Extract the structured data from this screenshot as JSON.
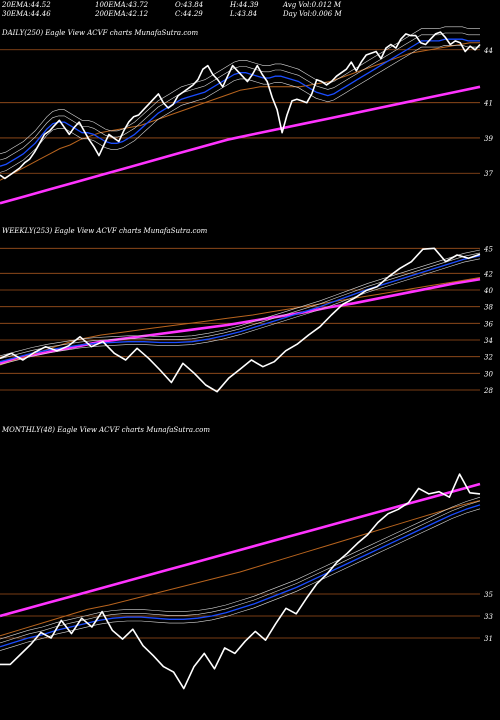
{
  "header": {
    "row1": [
      {
        "label": "20EMA:",
        "value": "44.52"
      },
      {
        "label": "100EMA:",
        "value": "43.72"
      },
      {
        "label": "O:",
        "value": "43.84"
      },
      {
        "label": "H:",
        "value": "44.39"
      },
      {
        "label": "Avg Vol:",
        "value": "0.012  M"
      }
    ],
    "row2": [
      {
        "label": "30EMA:",
        "value": "44.46"
      },
      {
        "label": "200EMA:",
        "value": "42.12"
      },
      {
        "label": "C:",
        "value": "44.29"
      },
      {
        "label": "L:",
        "value": "43.84"
      },
      {
        "label": "Day Vol:",
        "value": "0.006  M"
      }
    ]
  },
  "colors": {
    "background": "#000000",
    "price": "#ffffff",
    "ema_blue": "#1a4cff",
    "ema_pink": "#ff33ff",
    "ema_orange": "#b8641e",
    "hline": "#a0521d",
    "ema_white": "#d8d8d8"
  },
  "chart_data": [
    {
      "type": "line",
      "title": "DAILY(250) Eagle  View  ACVF charts MunafaSutra.com",
      "yticks": [
        "44",
        "41",
        "39",
        "37"
      ],
      "ylim": [
        35.2,
        45.8
      ],
      "series": [
        {
          "values": [
            36.9,
            36.7,
            36.9,
            37.1,
            37.3,
            37.6,
            37.8,
            38.2,
            38.7,
            39.2,
            39.4,
            39.7,
            40.0,
            39.6,
            39.2,
            39.6,
            39.9,
            39.4,
            38.9,
            38.5,
            38.0,
            38.6,
            39.2,
            39.0,
            38.8,
            39.4,
            39.9,
            40.2,
            40.3,
            40.6,
            40.9,
            41.2,
            41.5,
            41.0,
            40.7,
            40.9,
            41.4,
            41.6,
            41.8,
            42.0,
            42.3,
            42.9,
            43.1,
            42.6,
            42.3,
            41.9,
            42.5,
            43.1,
            42.8,
            42.5,
            42.2,
            42.6,
            43.1,
            42.6,
            42.2,
            41.3,
            40.6,
            39.3,
            40.3,
            41.1,
            41.2,
            41.1,
            41.0,
            41.5,
            42.3,
            42.2,
            42.0,
            42.2,
            42.5,
            42.7,
            42.9,
            43.3,
            42.8,
            43.3,
            43.7,
            43.8,
            43.9,
            43.5,
            44.1,
            44.3,
            44.1,
            44.6,
            44.9,
            44.8,
            44.8,
            44.4,
            44.3,
            44.6,
            44.9,
            45.0,
            44.7,
            44.3,
            44.5,
            44.4,
            43.9,
            44.2,
            44.0,
            44.3
          ]
        },
        {
          "values": [
            37.4,
            37.5,
            37.7,
            37.9,
            38.1,
            38.4,
            38.7,
            39.1,
            39.5,
            39.8,
            39.9,
            39.9,
            39.7,
            39.5,
            39.3,
            39.3,
            39.2,
            39.0,
            38.8,
            38.7,
            38.7,
            38.8,
            39.0,
            39.2,
            39.5,
            39.8,
            40.1,
            40.4,
            40.6,
            40.8,
            41.0,
            41.2,
            41.3,
            41.4,
            41.5,
            41.6,
            41.8,
            42.0,
            42.2,
            42.4,
            42.6,
            42.7,
            42.7,
            42.6,
            42.5,
            42.4,
            42.4,
            42.5,
            42.5,
            42.4,
            42.3,
            42.2,
            42.0,
            41.8,
            41.6,
            41.5,
            41.4,
            41.5,
            41.7,
            41.9,
            42.1,
            42.3,
            42.5,
            42.7,
            42.9,
            43.1,
            43.3,
            43.5,
            43.7,
            43.9,
            44.1,
            44.3,
            44.5,
            44.5,
            44.5,
            44.5,
            44.6,
            44.6,
            44.6,
            44.6,
            44.5,
            44.5,
            44.5
          ]
        },
        {
          "values": [
            36.6,
            36.9,
            37.2,
            37.5,
            37.8,
            38.1,
            38.4,
            38.6,
            38.9,
            39.1,
            39.3,
            39.4,
            39.5,
            39.6,
            39.7,
            39.9,
            40.1,
            40.3,
            40.5,
            40.7,
            40.9,
            41.1,
            41.3,
            41.5,
            41.7,
            41.8,
            41.9,
            41.9,
            41.9,
            41.9,
            41.9,
            42.0,
            42.1,
            42.2,
            42.4,
            42.6,
            42.8,
            43.0,
            43.2,
            43.4,
            43.6,
            43.8,
            43.9,
            44.0,
            44.1,
            44.2,
            44.3,
            44.4,
            44.4
          ]
        },
        {
          "values": [
            35.3,
            35.7,
            36.1,
            36.5,
            36.9,
            37.3,
            37.7,
            38.1,
            38.5,
            38.9,
            39.2,
            39.5,
            39.8,
            40.1,
            40.4,
            40.7,
            41.0,
            41.3,
            41.6,
            41.9
          ]
        }
      ]
    },
    {
      "type": "line",
      "title": "WEEKLY(253) Eagle  View  ACVF charts MunafaSutra.com",
      "yticks": [
        "45",
        "42",
        "40",
        "38",
        "36",
        "34",
        "32",
        "30",
        "28"
      ],
      "ylim": [
        26.8,
        46.0
      ],
      "series": [
        {
          "values": [
            31.8,
            32.4,
            31.6,
            32.5,
            33.2,
            32.7,
            33.3,
            34.4,
            33.2,
            33.8,
            32.4,
            31.6,
            33.0,
            31.8,
            30.4,
            28.9,
            31.2,
            30.0,
            28.6,
            27.8,
            29.4,
            30.5,
            31.6,
            30.8,
            31.4,
            32.7,
            33.5,
            34.6,
            35.6,
            37.0,
            38.3,
            39.0,
            39.9,
            40.4,
            41.6,
            42.6,
            43.4,
            44.9,
            45.0,
            43.4,
            44.2,
            43.8,
            44.3
          ]
        },
        {
          "values": [
            31.4,
            31.9,
            32.4,
            32.8,
            33.1,
            33.4,
            33.6,
            33.7,
            33.8,
            33.8,
            33.7,
            33.7,
            33.8,
            34.1,
            34.5,
            35.0,
            35.6,
            36.2,
            36.8,
            37.4,
            38.0,
            38.7,
            39.4,
            40.1,
            40.7,
            41.3,
            41.9,
            42.5,
            43.1,
            43.7,
            44.1
          ]
        },
        {
          "values": [
            31.0,
            32.0,
            33.0,
            34.0,
            34.6,
            35.0,
            35.4,
            35.8,
            36.2,
            36.6,
            37.0,
            37.5,
            38.0,
            38.5,
            39.0,
            39.5,
            40.0,
            40.5,
            41.0,
            41.5
          ]
        },
        {
          "values": [
            31.2,
            32.0,
            32.6,
            33.2,
            33.8,
            34.2,
            34.6,
            35.0,
            35.4,
            35.8,
            36.3,
            36.8,
            37.3,
            37.9,
            38.4,
            39.0,
            39.6,
            40.2,
            40.8,
            41.3
          ]
        }
      ]
    },
    {
      "type": "line",
      "title": "MONTHLY(48) Eagle  View  ACVF charts MunafaSutra.com",
      "yticks": [
        "35",
        "33",
        "31"
      ],
      "ylim": [
        24.0,
        49.0
      ],
      "series": [
        {
          "values": [
            28.6,
            28.6,
            29.5,
            30.4,
            31.5,
            31.0,
            32.6,
            31.4,
            32.8,
            32.0,
            33.4,
            31.7,
            30.9,
            31.8,
            30.3,
            29.4,
            28.4,
            27.9,
            26.4,
            28.4,
            29.6,
            28.2,
            30.1,
            29.6,
            30.7,
            31.6,
            30.8,
            32.3,
            33.7,
            33.2,
            34.6,
            35.9,
            36.8,
            37.9,
            38.7,
            39.6,
            40.4,
            41.5,
            42.3,
            42.7,
            43.3,
            44.6,
            44.1,
            44.3,
            43.8,
            45.9,
            44.2,
            44.1
          ]
        },
        {
          "values": [
            30.2,
            30.6,
            31.0,
            31.3,
            31.7,
            32.0,
            32.3,
            32.6,
            32.8,
            32.9,
            32.9,
            32.8,
            32.7,
            32.7,
            32.8,
            33.0,
            33.3,
            33.7,
            34.1,
            34.6,
            35.1,
            35.6,
            36.2,
            36.8,
            37.4,
            38.0,
            38.6,
            39.2,
            39.8,
            40.4,
            41.0,
            41.6,
            42.2,
            42.7,
            43.1
          ]
        },
        {
          "values": [
            31.2,
            31.8,
            32.4,
            33.0,
            33.6,
            34.0,
            34.5,
            35.0,
            35.5,
            36.0,
            36.5,
            37.0,
            37.6,
            38.2,
            38.8,
            39.4,
            40.0,
            40.6,
            41.2,
            41.8,
            42.4,
            43.0,
            43.5
          ]
        },
        {
          "values": [
            33.0,
            33.6,
            34.2,
            34.8,
            35.4,
            36.0,
            36.6,
            37.2,
            37.8,
            38.4,
            39.0,
            39.6,
            40.2,
            40.8,
            41.4,
            42.0,
            42.6,
            43.2,
            43.8,
            44.4,
            45.0
          ]
        }
      ]
    }
  ]
}
